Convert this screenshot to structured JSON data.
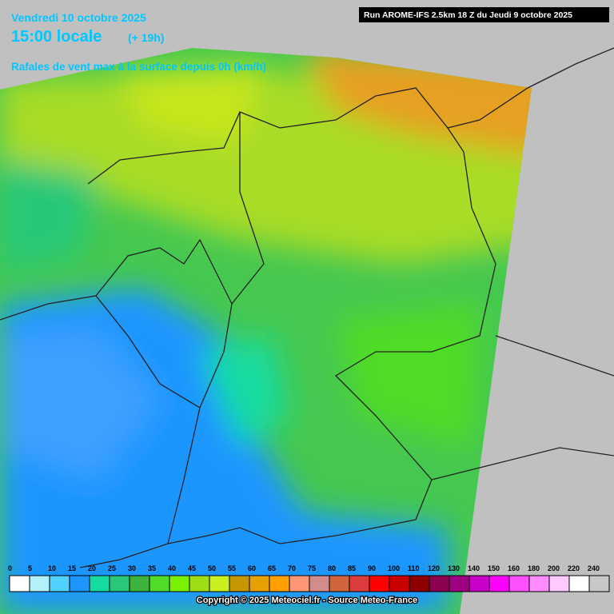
{
  "header": {
    "date": "Vendredi 10 octobre 2025",
    "time": "15:00 locale",
    "lead": "(+ 19h)",
    "parameter": "Rafales de vent max à la surface depuis 0h (km/h)",
    "run": "Run AROME-IFS 2.5km 18 Z du Jeudi 9 octobre 2025"
  },
  "legend": {
    "items": [
      {
        "label": 0,
        "color": "#ffffff"
      },
      {
        "label": 5,
        "color": "#b4f0fa"
      },
      {
        "label": 10,
        "color": "#50d2ff"
      },
      {
        "label": 15,
        "color": "#1e96ff"
      },
      {
        "label": 20,
        "color": "#14dca0"
      },
      {
        "label": 25,
        "color": "#28c878"
      },
      {
        "label": 30,
        "color": "#3cb43c"
      },
      {
        "label": 35,
        "color": "#50dc28"
      },
      {
        "label": 40,
        "color": "#78f000"
      },
      {
        "label": 45,
        "color": "#a0dc14"
      },
      {
        "label": 50,
        "color": "#c8f01e"
      },
      {
        "label": 55,
        "color": "#c89600"
      },
      {
        "label": 60,
        "color": "#e6a000"
      },
      {
        "label": 65,
        "color": "#ffa000"
      },
      {
        "label": 70,
        "color": "#ff9673"
      },
      {
        "label": 75,
        "color": "#d28c8c"
      },
      {
        "label": 80,
        "color": "#d2643c"
      },
      {
        "label": 85,
        "color": "#dc3c3c"
      },
      {
        "label": 90,
        "color": "#ff0000"
      },
      {
        "label": 100,
        "color": "#c80000"
      },
      {
        "label": 110,
        "color": "#8c0000"
      },
      {
        "label": 120,
        "color": "#8c0050"
      },
      {
        "label": 130,
        "color": "#a00082"
      },
      {
        "label": 140,
        "color": "#c800c8"
      },
      {
        "label": 150,
        "color": "#ff00ff"
      },
      {
        "label": 160,
        "color": "#ff50ff"
      },
      {
        "label": 180,
        "color": "#ff8cff"
      },
      {
        "label": 200,
        "color": "#ffc8ff"
      },
      {
        "label": 220,
        "color": "#ffffff"
      },
      {
        "label": 240,
        "color": "#c8c8c8"
      }
    ]
  },
  "footer": {
    "copyright": "Copyright © 2025 Meteociel.fr - Source Meteo-France"
  }
}
